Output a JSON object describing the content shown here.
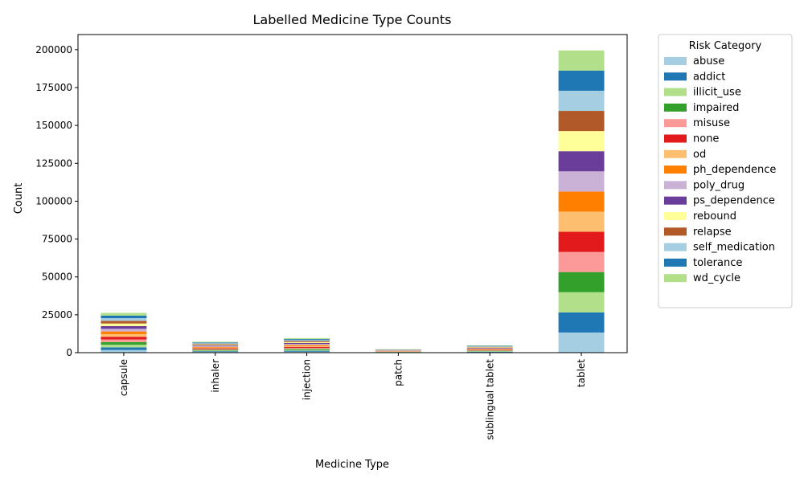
{
  "chart_data": {
    "type": "bar",
    "stacked": true,
    "title": "Labelled Medicine Type Counts",
    "xlabel": "Medicine Type",
    "ylabel": "Count",
    "categories": [
      "capsule",
      "inhaler",
      "injection",
      "patch",
      "sublingual tablet",
      "tablet"
    ],
    "ylim": [
      0,
      210000
    ],
    "yticks": [
      0,
      25000,
      50000,
      75000,
      100000,
      125000,
      150000,
      175000,
      200000
    ],
    "grid": false,
    "legend": {
      "title": "Risk Category",
      "placement": "outside-right"
    },
    "series": [
      {
        "name": "abuse",
        "color": "#a6cee3",
        "values": [
          1750,
          480,
          640,
          150,
          320,
          13300
        ]
      },
      {
        "name": "addict",
        "color": "#1f78b4",
        "values": [
          1750,
          480,
          640,
          150,
          320,
          13300
        ]
      },
      {
        "name": "illicit_use",
        "color": "#b2df8a",
        "values": [
          1750,
          480,
          640,
          150,
          320,
          13300
        ]
      },
      {
        "name": "impaired",
        "color": "#33a02c",
        "values": [
          1750,
          480,
          640,
          150,
          320,
          13300
        ]
      },
      {
        "name": "misuse",
        "color": "#fb9a99",
        "values": [
          1750,
          480,
          640,
          150,
          320,
          13300
        ]
      },
      {
        "name": "none",
        "color": "#e31a1c",
        "values": [
          1750,
          480,
          640,
          150,
          320,
          13300
        ]
      },
      {
        "name": "od",
        "color": "#fdbf6f",
        "values": [
          1750,
          480,
          640,
          150,
          320,
          13300
        ]
      },
      {
        "name": "ph_dependence",
        "color": "#ff7f00",
        "values": [
          1750,
          480,
          640,
          150,
          320,
          13300
        ]
      },
      {
        "name": "poly_drug",
        "color": "#cab2d6",
        "values": [
          1750,
          480,
          640,
          150,
          320,
          13300
        ]
      },
      {
        "name": "ps_dependence",
        "color": "#6a3d9a",
        "values": [
          1750,
          480,
          640,
          150,
          320,
          13300
        ]
      },
      {
        "name": "rebound",
        "color": "#ffff99",
        "values": [
          1750,
          480,
          640,
          150,
          320,
          13300
        ]
      },
      {
        "name": "relapse",
        "color": "#b15928",
        "values": [
          1750,
          480,
          640,
          150,
          320,
          13300
        ]
      },
      {
        "name": "self_medication",
        "color": "#a6cee3",
        "values": [
          1750,
          480,
          640,
          150,
          320,
          13300
        ]
      },
      {
        "name": "tolerance",
        "color": "#1f78b4",
        "values": [
          1750,
          480,
          640,
          150,
          320,
          13300
        ]
      },
      {
        "name": "wd_cycle",
        "color": "#b2df8a",
        "values": [
          1750,
          480,
          640,
          150,
          320,
          13300
        ]
      }
    ]
  }
}
